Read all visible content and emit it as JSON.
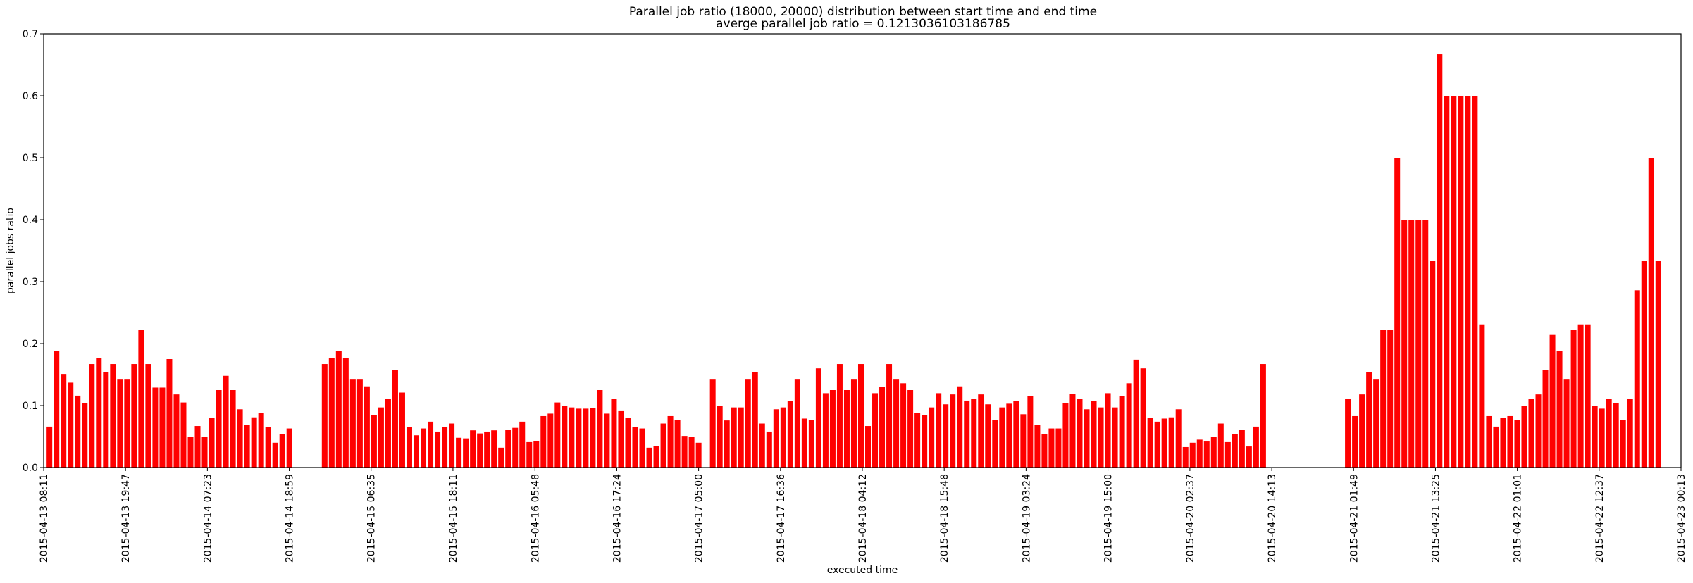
{
  "chart_data": {
    "type": "bar",
    "title": "Parallel job ratio (18000, 20000) distribution between start time and end time",
    "subtitle": "averge parallel job ratio = 0.1213036103186785",
    "xlabel": "executed time",
    "ylabel": "parallel jobs ratio",
    "ylim": [
      0,
      0.7
    ],
    "yticks": [
      "0.0",
      "0.1",
      "0.2",
      "0.3",
      "0.4",
      "0.5",
      "0.6",
      "0.7"
    ],
    "xlim": [
      "2015-04-13 08:11",
      "2015-04-23 00:13"
    ],
    "xticks": [
      "2015-04-13 08:11",
      "2015-04-13 19:47",
      "2015-04-14 07:23",
      "2015-04-14 18:59",
      "2015-04-15 06:35",
      "2015-04-15 18:11",
      "2015-04-16 05:48",
      "2015-04-16 17:24",
      "2015-04-17 05:00",
      "2015-04-17 16:36",
      "2015-04-18 04:12",
      "2015-04-18 15:48",
      "2015-04-19 03:24",
      "2015-04-19 15:00",
      "2015-04-20 02:37",
      "2015-04-20 14:13",
      "2015-04-21 01:49",
      "2015-04-21 13:25",
      "2015-04-22 01:01",
      "2015-04-22 12:37",
      "2015-04-23 00:13"
    ],
    "bar_color": "#ff0000",
    "grid": false,
    "segments": [
      {
        "start": "2015-04-13 09:00",
        "values": [
          0.066,
          0.188,
          0.151,
          0.137,
          0.116,
          0.104,
          0.167,
          0.177,
          0.154,
          0.167,
          0.143,
          0.143,
          0.167,
          0.222,
          0.167,
          0.129,
          0.129,
          0.175,
          0.118,
          0.105,
          0.05,
          0.067,
          0.05,
          0.08,
          0.125,
          0.148,
          0.125,
          0.094,
          0.069,
          0.081,
          0.088,
          0.065,
          0.04,
          0.054,
          0.063
        ]
      },
      {
        "start": "2015-04-15 00:00",
        "values": [
          0.167,
          0.177,
          0.188,
          0.177,
          0.143,
          0.143,
          0.131,
          0.085,
          0.097,
          0.111,
          0.157,
          0.121,
          0.065,
          0.052,
          0.063,
          0.074,
          0.058,
          0.065,
          0.071,
          0.048,
          0.047,
          0.06,
          0.055,
          0.058,
          0.06,
          0.032,
          0.061,
          0.064,
          0.074,
          0.041,
          0.043,
          0.083,
          0.087,
          0.105,
          0.1,
          0.097,
          0.095,
          0.095,
          0.096,
          0.125,
          0.087,
          0.111,
          0.091,
          0.08,
          0.065,
          0.063,
          0.032,
          0.035,
          0.071,
          0.083,
          0.077,
          0.051,
          0.05,
          0.04
        ]
      },
      {
        "start": "2015-04-17 07:00",
        "values": [
          0.143,
          0.1,
          0.076,
          0.097,
          0.097,
          0.143,
          0.154,
          0.071,
          0.058,
          0.094,
          0.097,
          0.107,
          0.143,
          0.079,
          0.077,
          0.16,
          0.12,
          0.125,
          0.167,
          0.125,
          0.143,
          0.167,
          0.067,
          0.12,
          0.13,
          0.167,
          0.143,
          0.136,
          0.125,
          0.088,
          0.085,
          0.097,
          0.12,
          0.102,
          0.118,
          0.131,
          0.108,
          0.111,
          0.118,
          0.102,
          0.077,
          0.097,
          0.103,
          0.107,
          0.086,
          0.115,
          0.069,
          0.054,
          0.063,
          0.063,
          0.104,
          0.119,
          0.111,
          0.094,
          0.107,
          0.097,
          0.12,
          0.097,
          0.115,
          0.136,
          0.174,
          0.16,
          0.08,
          0.074,
          0.079,
          0.081,
          0.094,
          0.033,
          0.04,
          0.045,
          0.042,
          0.05,
          0.071,
          0.041,
          0.054,
          0.061,
          0.034,
          0.066,
          0.167
        ]
      },
      {
        "start": "2015-04-21 01:00",
        "values": [
          0.111,
          0.083,
          0.118,
          0.154,
          0.143,
          0.222,
          0.222,
          0.5,
          0.4,
          0.4,
          0.4,
          0.4,
          0.333,
          0.667,
          0.6,
          0.6,
          0.6,
          0.6,
          0.6,
          0.231,
          0.083,
          0.066,
          0.08,
          0.083,
          0.077,
          0.1,
          0.111,
          0.118,
          0.157,
          0.214,
          0.188,
          0.143,
          0.222,
          0.231,
          0.231,
          0.1,
          0.095,
          0.111,
          0.104,
          0.077,
          0.111,
          0.286,
          0.333,
          0.5,
          0.333
        ]
      }
    ]
  }
}
